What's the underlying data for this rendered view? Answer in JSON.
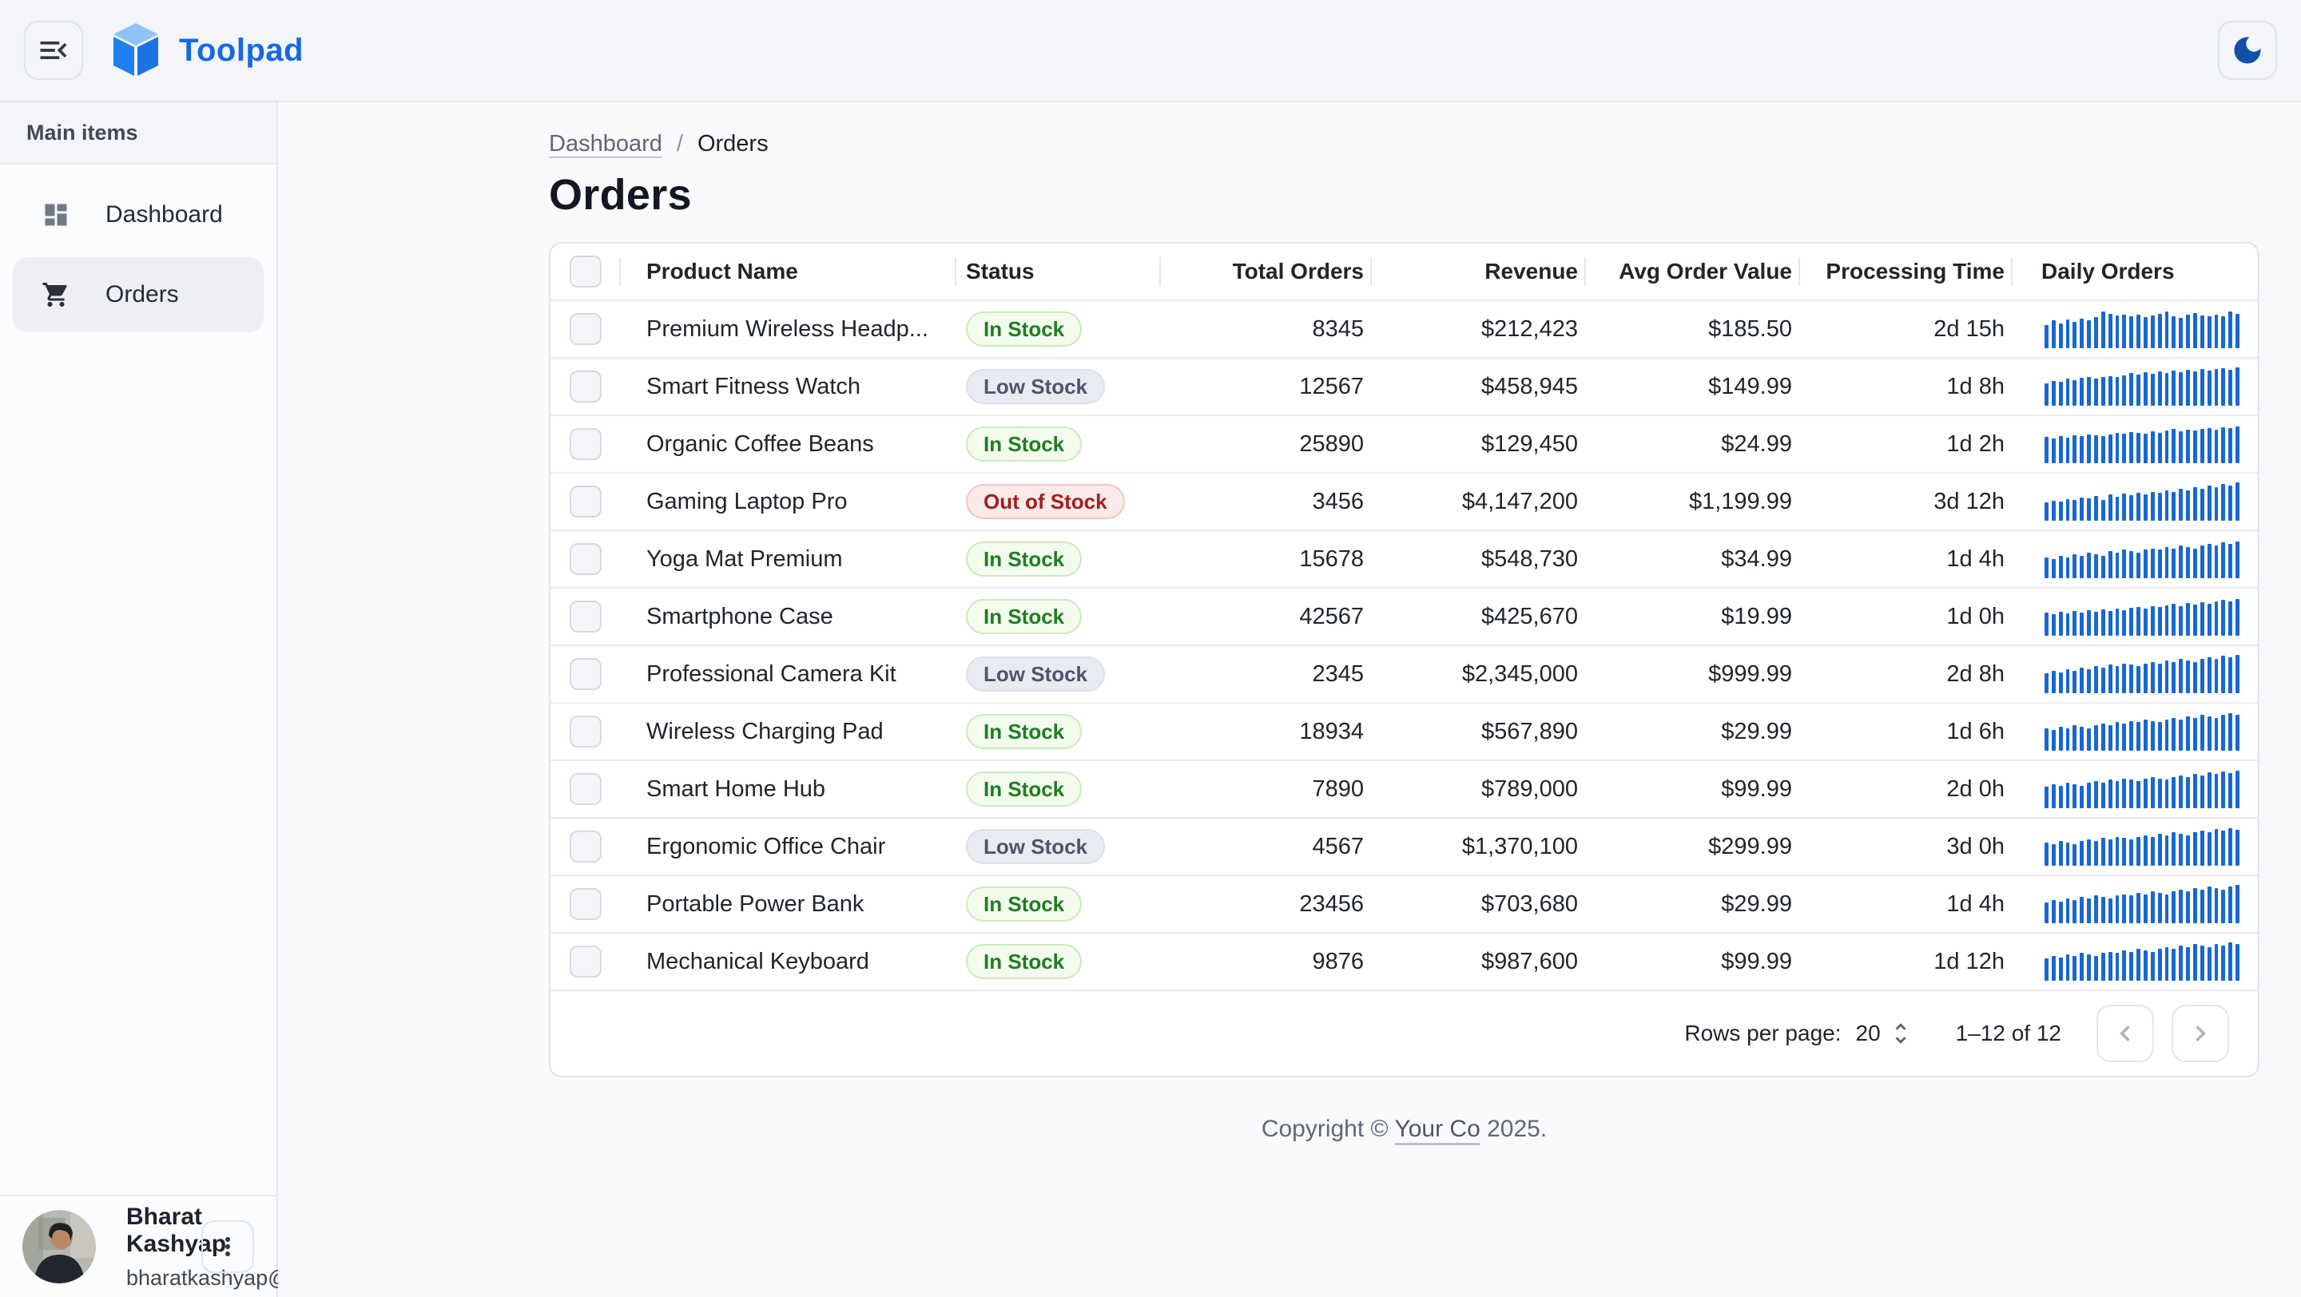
{
  "header": {
    "brand": "Toolpad"
  },
  "sidebar": {
    "section_label": "Main items",
    "items": [
      {
        "label": "Dashboard",
        "icon": "dashboard-icon",
        "selected": false
      },
      {
        "label": "Orders",
        "icon": "cart-icon",
        "selected": true
      }
    ],
    "user": {
      "name": "Bharat Kashyap",
      "email": "bharatkashyap@outlook.com"
    }
  },
  "breadcrumb": {
    "parent": "Dashboard",
    "separator": "/",
    "current": "Orders"
  },
  "page": {
    "title": "Orders"
  },
  "table": {
    "columns": [
      {
        "key": "check",
        "label": "",
        "type": "check"
      },
      {
        "key": "name",
        "label": "Product Name",
        "type": "name"
      },
      {
        "key": "status",
        "label": "Status",
        "type": "status"
      },
      {
        "key": "total_orders",
        "label": "Total Orders",
        "type": "num"
      },
      {
        "key": "revenue",
        "label": "Revenue",
        "type": "num"
      },
      {
        "key": "avg_order_value",
        "label": "Avg Order Value",
        "type": "num"
      },
      {
        "key": "processing_time",
        "label": "Processing Time",
        "type": "num"
      },
      {
        "key": "daily",
        "label": "Daily Orders",
        "type": "spark"
      }
    ],
    "rows": [
      {
        "name": "Premium Wireless Headp...",
        "status": "In Stock",
        "status_variant": "success",
        "total_orders": "8345",
        "revenue": "$212,423",
        "avg_order_value": "$185.50",
        "processing_time": "2d 15h",
        "daily": [
          60,
          72,
          65,
          75,
          68,
          78,
          72,
          82,
          95,
          90,
          85,
          88,
          84,
          88,
          82,
          86,
          90,
          95,
          84,
          80,
          88,
          92,
          86,
          84,
          88,
          84,
          96,
          90
        ]
      },
      {
        "name": "Smart Fitness Watch",
        "status": "Low Stock",
        "status_variant": "neutral",
        "total_orders": "12567",
        "revenue": "$458,945",
        "avg_order_value": "$149.99",
        "processing_time": "1d 8h",
        "daily": [
          58,
          65,
          62,
          70,
          66,
          72,
          75,
          70,
          74,
          78,
          74,
          80,
          85,
          82,
          88,
          84,
          90,
          86,
          92,
          88,
          94,
          90,
          96,
          92,
          95,
          98,
          94,
          100
        ]
      },
      {
        "name": "Organic Coffee Beans",
        "status": "In Stock",
        "status_variant": "success",
        "total_orders": "25890",
        "revenue": "$129,450",
        "avg_order_value": "$24.99",
        "processing_time": "1d 2h",
        "daily": [
          68,
          64,
          70,
          66,
          72,
          70,
          74,
          72,
          70,
          76,
          80,
          78,
          82,
          80,
          78,
          84,
          80,
          86,
          90,
          84,
          88,
          86,
          90,
          92,
          88,
          94,
          92,
          96
        ]
      },
      {
        "name": "Gaming Laptop Pro",
        "status": "Out of Stock",
        "status_variant": "error",
        "total_orders": "3456",
        "revenue": "$4,147,200",
        "avg_order_value": "$1,199.99",
        "processing_time": "3d 12h",
        "daily": [
          48,
          52,
          50,
          56,
          54,
          60,
          58,
          64,
          55,
          68,
          62,
          70,
          66,
          72,
          68,
          76,
          72,
          80,
          76,
          84,
          80,
          88,
          84,
          92,
          88,
          96,
          92,
          100
        ]
      },
      {
        "name": "Yoga Mat Premium",
        "status": "In Stock",
        "status_variant": "success",
        "total_orders": "15678",
        "revenue": "$548,730",
        "avg_order_value": "$34.99",
        "processing_time": "1d 4h",
        "daily": [
          55,
          50,
          58,
          54,
          62,
          58,
          66,
          62,
          58,
          70,
          66,
          74,
          70,
          66,
          74,
          78,
          74,
          82,
          78,
          86,
          82,
          78,
          86,
          90,
          86,
          94,
          90,
          96
        ]
      },
      {
        "name": "Smartphone Case",
        "status": "In Stock",
        "status_variant": "success",
        "total_orders": "42567",
        "revenue": "$425,670",
        "avg_order_value": "$19.99",
        "processing_time": "1d 0h",
        "daily": [
          60,
          56,
          62,
          58,
          64,
          60,
          66,
          62,
          68,
          64,
          70,
          66,
          72,
          76,
          70,
          78,
          74,
          80,
          84,
          78,
          86,
          82,
          88,
          84,
          90,
          94,
          90,
          96
        ]
      },
      {
        "name": "Professional Camera Kit",
        "status": "Low Stock",
        "status_variant": "neutral",
        "total_orders": "2345",
        "revenue": "$2,345,000",
        "avg_order_value": "$999.99",
        "processing_time": "2d 8h",
        "daily": [
          52,
          58,
          54,
          62,
          58,
          66,
          62,
          70,
          66,
          74,
          70,
          78,
          74,
          70,
          78,
          82,
          78,
          86,
          82,
          90,
          86,
          82,
          90,
          94,
          90,
          98,
          94,
          100
        ]
      },
      {
        "name": "Wireless Charging Pad",
        "status": "In Stock",
        "status_variant": "success",
        "total_orders": "18934",
        "revenue": "$567,890",
        "avg_order_value": "$29.99",
        "processing_time": "1d 6h",
        "daily": [
          58,
          54,
          62,
          58,
          66,
          62,
          58,
          66,
          70,
          66,
          74,
          70,
          78,
          74,
          82,
          78,
          74,
          82,
          86,
          82,
          90,
          86,
          94,
          90,
          86,
          94,
          98,
          94
        ]
      },
      {
        "name": "Smart Home Hub",
        "status": "In Stock",
        "status_variant": "success",
        "total_orders": "7890",
        "revenue": "$789,000",
        "avg_order_value": "$99.99",
        "processing_time": "2d 0h",
        "daily": [
          56,
          62,
          58,
          66,
          62,
          58,
          66,
          70,
          66,
          74,
          70,
          78,
          74,
          70,
          78,
          82,
          78,
          74,
          82,
          86,
          82,
          90,
          86,
          94,
          90,
          96,
          92,
          98
        ]
      },
      {
        "name": "Ergonomic Office Chair",
        "status": "Low Stock",
        "status_variant": "neutral",
        "total_orders": "4567",
        "revenue": "$1,370,100",
        "avg_order_value": "$299.99",
        "processing_time": "3d 0h",
        "daily": [
          60,
          56,
          64,
          60,
          56,
          64,
          68,
          64,
          72,
          68,
          76,
          72,
          68,
          76,
          80,
          76,
          84,
          80,
          88,
          84,
          80,
          88,
          92,
          88,
          96,
          92,
          98,
          94
        ]
      },
      {
        "name": "Portable Power Bank",
        "status": "In Stock",
        "status_variant": "success",
        "total_orders": "23456",
        "revenue": "$703,680",
        "avg_order_value": "$29.99",
        "processing_time": "1d 4h",
        "daily": [
          54,
          60,
          56,
          64,
          60,
          68,
          64,
          72,
          68,
          64,
          72,
          76,
          72,
          80,
          76,
          84,
          80,
          76,
          84,
          88,
          84,
          92,
          88,
          96,
          92,
          88,
          96,
          100
        ]
      },
      {
        "name": "Mechanical Keyboard",
        "status": "In Stock",
        "status_variant": "success",
        "total_orders": "9876",
        "revenue": "$987,600",
        "avg_order_value": "$99.99",
        "processing_time": "1d 12h",
        "daily": [
          58,
          64,
          60,
          68,
          64,
          72,
          68,
          64,
          72,
          76,
          72,
          80,
          76,
          84,
          80,
          76,
          84,
          88,
          84,
          92,
          88,
          96,
          92,
          88,
          96,
          92,
          100,
          96
        ]
      }
    ]
  },
  "pagination": {
    "rows_per_page_label": "Rows per page:",
    "rows_per_page": "20",
    "range": "1–12 of 12"
  },
  "footer": {
    "prefix": "Copyright © ",
    "company": "Your Co",
    "suffix": " 2025."
  },
  "colors": {
    "brand_blue": "#1669E0",
    "spark_bar": "#1867D2",
    "chip_success_text": "#1F7D22",
    "chip_neutral_text": "#4C566B",
    "chip_error_text": "#A31E1E",
    "header_bg": "#F4F5F9",
    "selected_nav_bg": "#EEEFF4"
  }
}
